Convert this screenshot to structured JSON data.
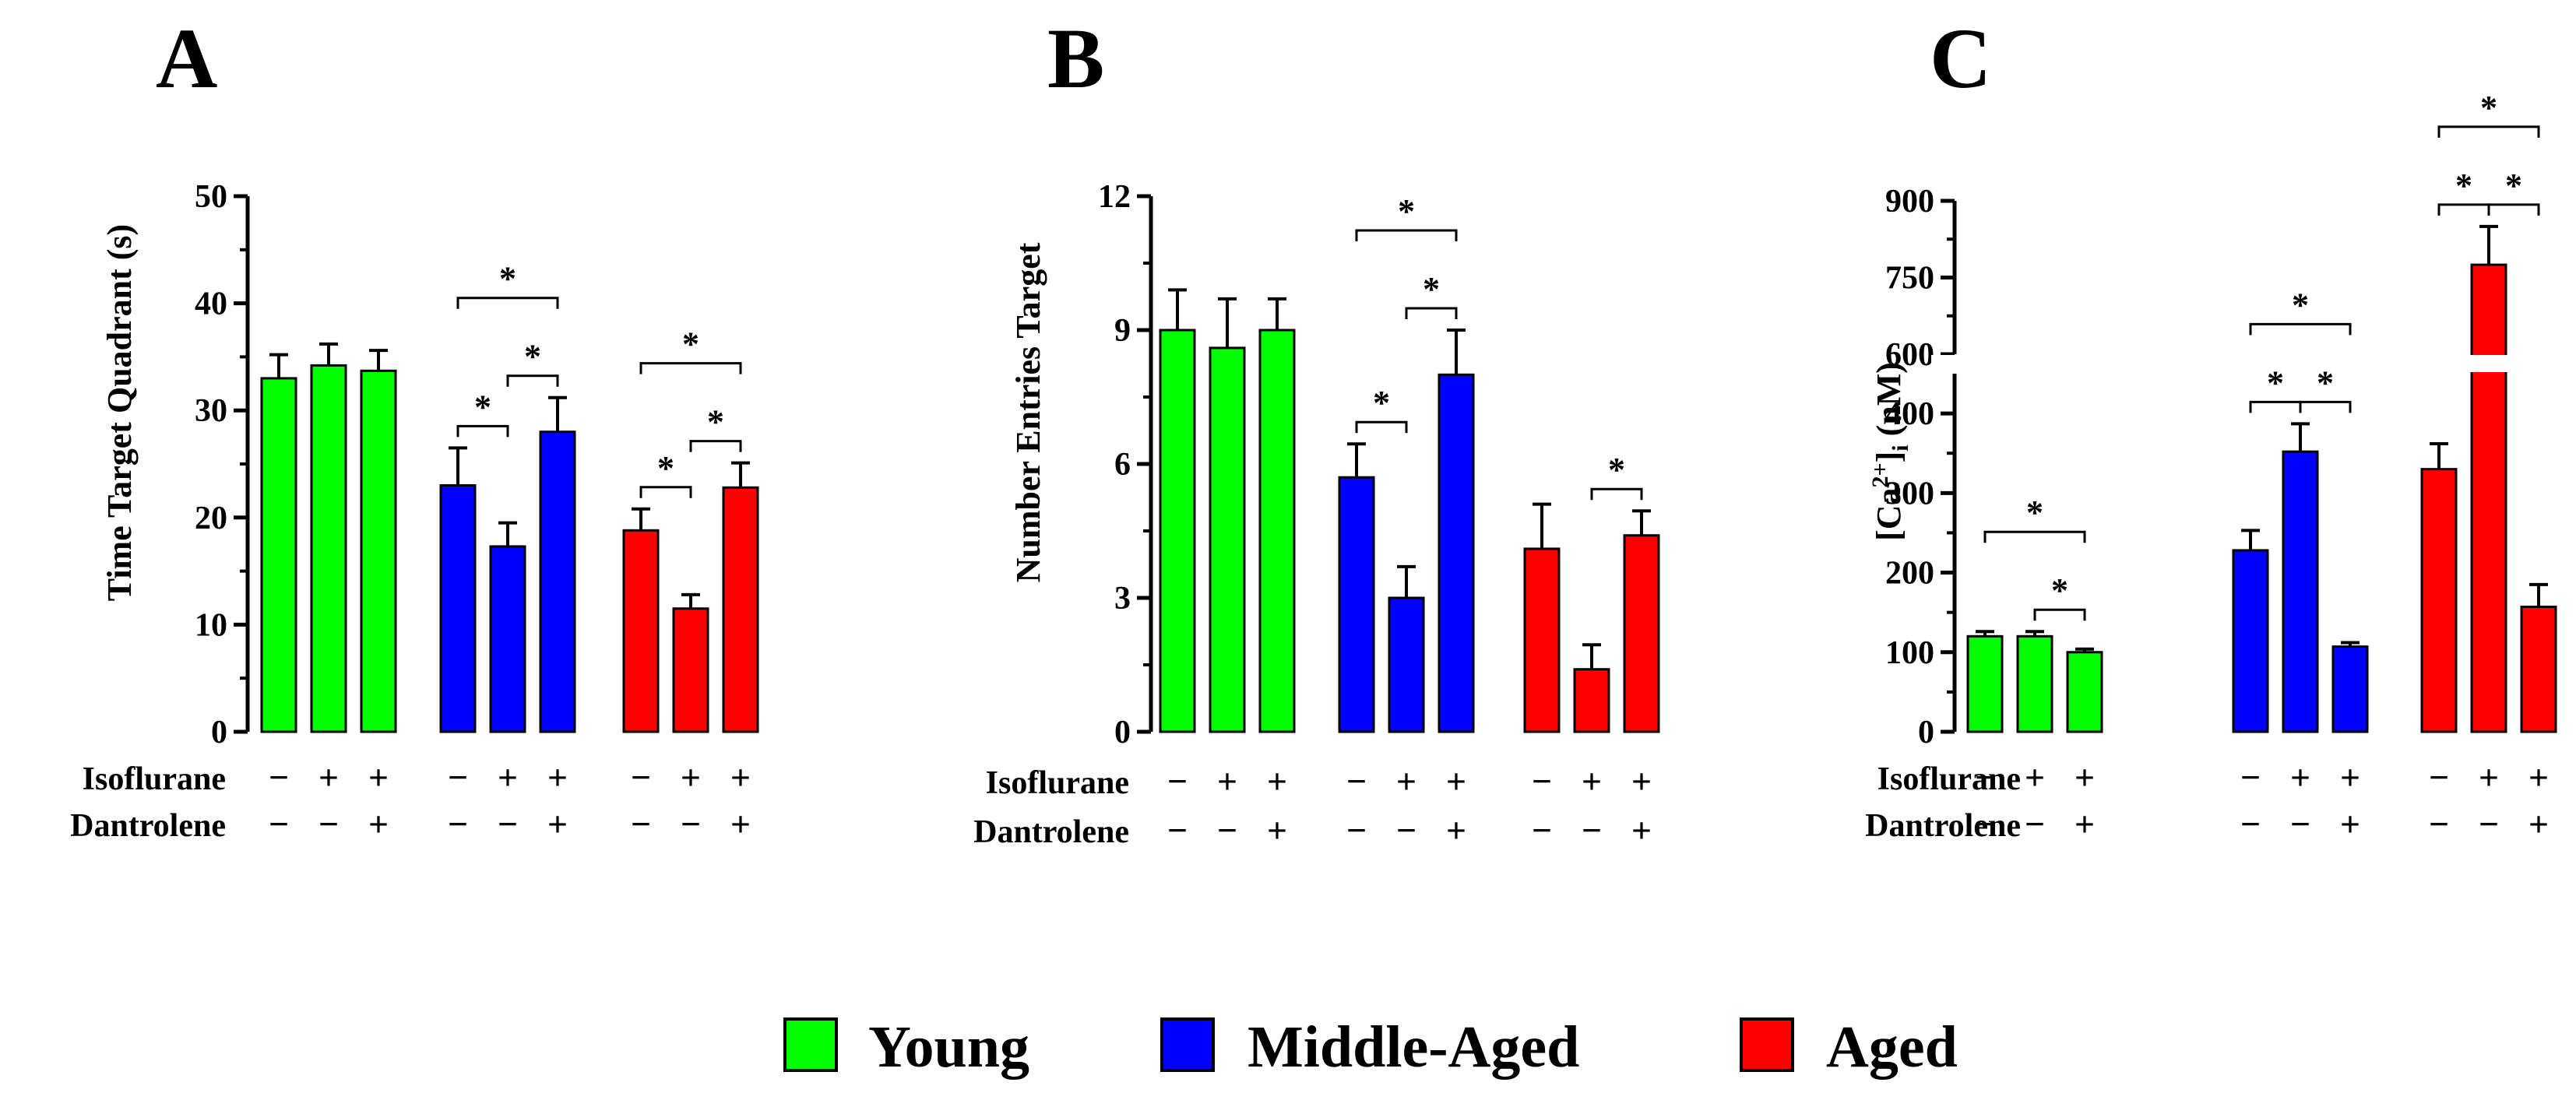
{
  "legend": [
    {
      "label": "Young",
      "color": "#00ff00"
    },
    {
      "label": "Middle-Aged",
      "color": "#0000ff"
    },
    {
      "label": "Aged",
      "color": "#ff0000"
    }
  ],
  "chart_data": [
    {
      "type": "bar",
      "panel": "A",
      "ylabel": "Time Target Quadrant (s)",
      "ylim": [
        0,
        50
      ],
      "yticks": [
        0,
        10,
        20,
        30,
        40,
        50
      ],
      "groups": [
        "Young",
        "Middle-Aged",
        "Aged"
      ],
      "series": [
        {
          "name": "Young",
          "values": [
            33,
            34.2,
            33.7
          ],
          "errors": [
            2.2,
            2.0,
            1.9
          ]
        },
        {
          "name": "Middle-Aged",
          "values": [
            23,
            17.3,
            28
          ],
          "errors": [
            3.5,
            2.2,
            3.2
          ]
        },
        {
          "name": "Aged",
          "values": [
            18.8,
            11.5,
            22.8
          ],
          "errors": [
            2.0,
            1.3,
            2.3
          ]
        }
      ],
      "conditions": {
        "Isoflurane": [
          "−",
          "+",
          "+"
        ],
        "Dantrolene": [
          "−",
          "−",
          "+"
        ]
      },
      "significance": [
        {
          "group": 1,
          "from": 0,
          "to": 1,
          "label": "*"
        },
        {
          "group": 1,
          "from": 1,
          "to": 2,
          "label": "*"
        },
        {
          "group": 1,
          "from": 0,
          "to": 2,
          "label": "*"
        },
        {
          "group": 2,
          "from": 0,
          "to": 1,
          "label": "*"
        },
        {
          "group": 2,
          "from": 1,
          "to": 2,
          "label": "*"
        },
        {
          "group": 2,
          "from": 0,
          "to": 2,
          "label": "*"
        }
      ]
    },
    {
      "type": "bar",
      "panel": "B",
      "ylabel": "Number Entries Target",
      "ylim": [
        0,
        12
      ],
      "yticks": [
        0,
        3,
        6,
        9,
        12
      ],
      "groups": [
        "Young",
        "Middle-Aged",
        "Aged"
      ],
      "series": [
        {
          "name": "Young",
          "values": [
            9,
            8.6,
            9
          ],
          "errors": [
            0.9,
            1.1,
            0.7
          ]
        },
        {
          "name": "Middle-Aged",
          "values": [
            5.7,
            3,
            8
          ],
          "errors": [
            0.75,
            0.7,
            1.0
          ]
        },
        {
          "name": "Aged",
          "values": [
            4.1,
            1.4,
            4.4
          ],
          "errors": [
            1.0,
            0.55,
            0.55
          ]
        }
      ],
      "conditions": {
        "Isoflurane": [
          "−",
          "+",
          "+"
        ],
        "Dantrolene": [
          "−",
          "−",
          "+"
        ]
      },
      "significance": [
        {
          "group": 1,
          "from": 0,
          "to": 1,
          "label": "*"
        },
        {
          "group": 1,
          "from": 1,
          "to": 2,
          "label": "*"
        },
        {
          "group": 1,
          "from": 0,
          "to": 2,
          "label": "*"
        },
        {
          "group": 2,
          "from": 1,
          "to": 2,
          "label": "*"
        }
      ]
    },
    {
      "type": "bar",
      "panel": "C",
      "ylabel": "[Ca2+]i (nM)",
      "ylabel_parts": {
        "main": "[Ca",
        "sup": "2+",
        "close": "]",
        "sub": "i",
        "unit": " (nM)"
      },
      "ylim": [
        0,
        900
      ],
      "axis_break": [
        450,
        600
      ],
      "yticks": [
        0,
        100,
        200,
        300,
        400,
        600,
        750,
        900
      ],
      "groups": [
        "Young",
        "Middle-Aged",
        "Aged"
      ],
      "series": [
        {
          "name": "Young",
          "values": [
            120,
            120,
            100
          ],
          "errors": [
            6,
            6,
            4
          ]
        },
        {
          "name": "Middle-Aged",
          "values": [
            228,
            352,
            107
          ],
          "errors": [
            25,
            35,
            5
          ]
        },
        {
          "name": "Aged",
          "values": [
            330,
            775,
            157
          ],
          "errors": [
            32,
            75,
            28
          ]
        }
      ],
      "conditions": {
        "Isoflurane": [
          "−",
          "+",
          "+"
        ],
        "Dantrolene": [
          "−",
          "−",
          "+"
        ]
      },
      "significance": [
        {
          "group": 0,
          "from": 1,
          "to": 2,
          "label": "*"
        },
        {
          "group": 0,
          "from": 0,
          "to": 2,
          "label": "*"
        },
        {
          "group": 1,
          "from": 0,
          "to": 1,
          "label": "*"
        },
        {
          "group": 1,
          "from": 1,
          "to": 2,
          "label": "*"
        },
        {
          "group": 1,
          "from": 0,
          "to": 2,
          "label": "*"
        },
        {
          "group": 2,
          "from": 0,
          "to": 1,
          "label": "*"
        },
        {
          "group": 2,
          "from": 1,
          "to": 2,
          "label": "*"
        },
        {
          "group": 2,
          "from": 0,
          "to": 2,
          "label": "*"
        }
      ]
    }
  ]
}
